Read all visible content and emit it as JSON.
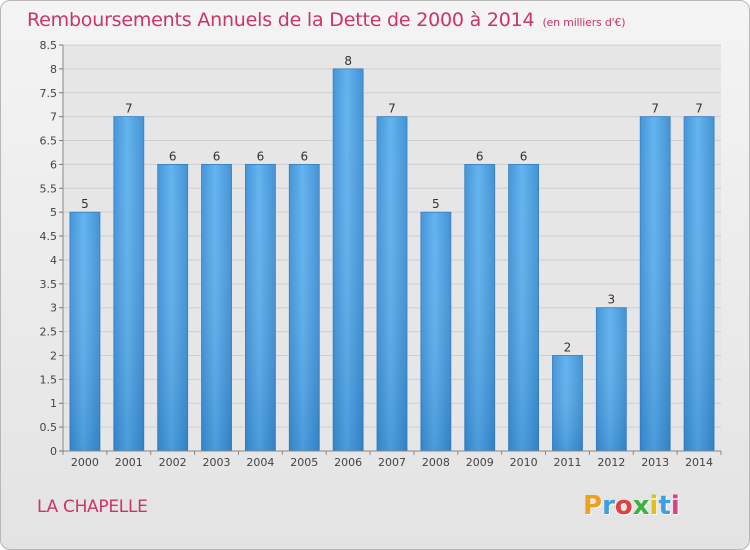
{
  "chart_data": {
    "type": "bar",
    "title": "Remboursements Annuels de la Dette de 2000 à 2014",
    "unit": "(en milliers d'€)",
    "categories": [
      "2000",
      "2001",
      "2002",
      "2003",
      "2004",
      "2005",
      "2006",
      "2007",
      "2008",
      "2009",
      "2010",
      "2011",
      "2012",
      "2013",
      "2014"
    ],
    "values": [
      5,
      7,
      6,
      6,
      6,
      6,
      8,
      7,
      5,
      6,
      6,
      2,
      3,
      7,
      7
    ],
    "data_labels": [
      "5",
      "7",
      "6",
      "6",
      "6",
      "6",
      "8",
      "7",
      "5",
      "6",
      "6",
      "2",
      "3",
      "7",
      "7"
    ],
    "ylim": [
      0,
      8.5
    ],
    "yticks": [
      "0",
      "0.5",
      "1",
      "1.5",
      "2",
      "2.5",
      "3",
      "3.5",
      "4",
      "4.5",
      "5",
      "5.5",
      "6",
      "6.5",
      "7",
      "7.5",
      "8",
      "8.5"
    ],
    "grid": true,
    "bar_color": "#4a9de0"
  },
  "town": "LA CHAPELLE",
  "logo": {
    "letters": [
      "P",
      "r",
      "o",
      "x",
      "i",
      "t",
      "i"
    ],
    "colors": [
      "#f0a020",
      "#3aa0e0",
      "#e04040",
      "#40b040",
      "#e0c020",
      "#3aa0e0",
      "#e04080"
    ]
  }
}
